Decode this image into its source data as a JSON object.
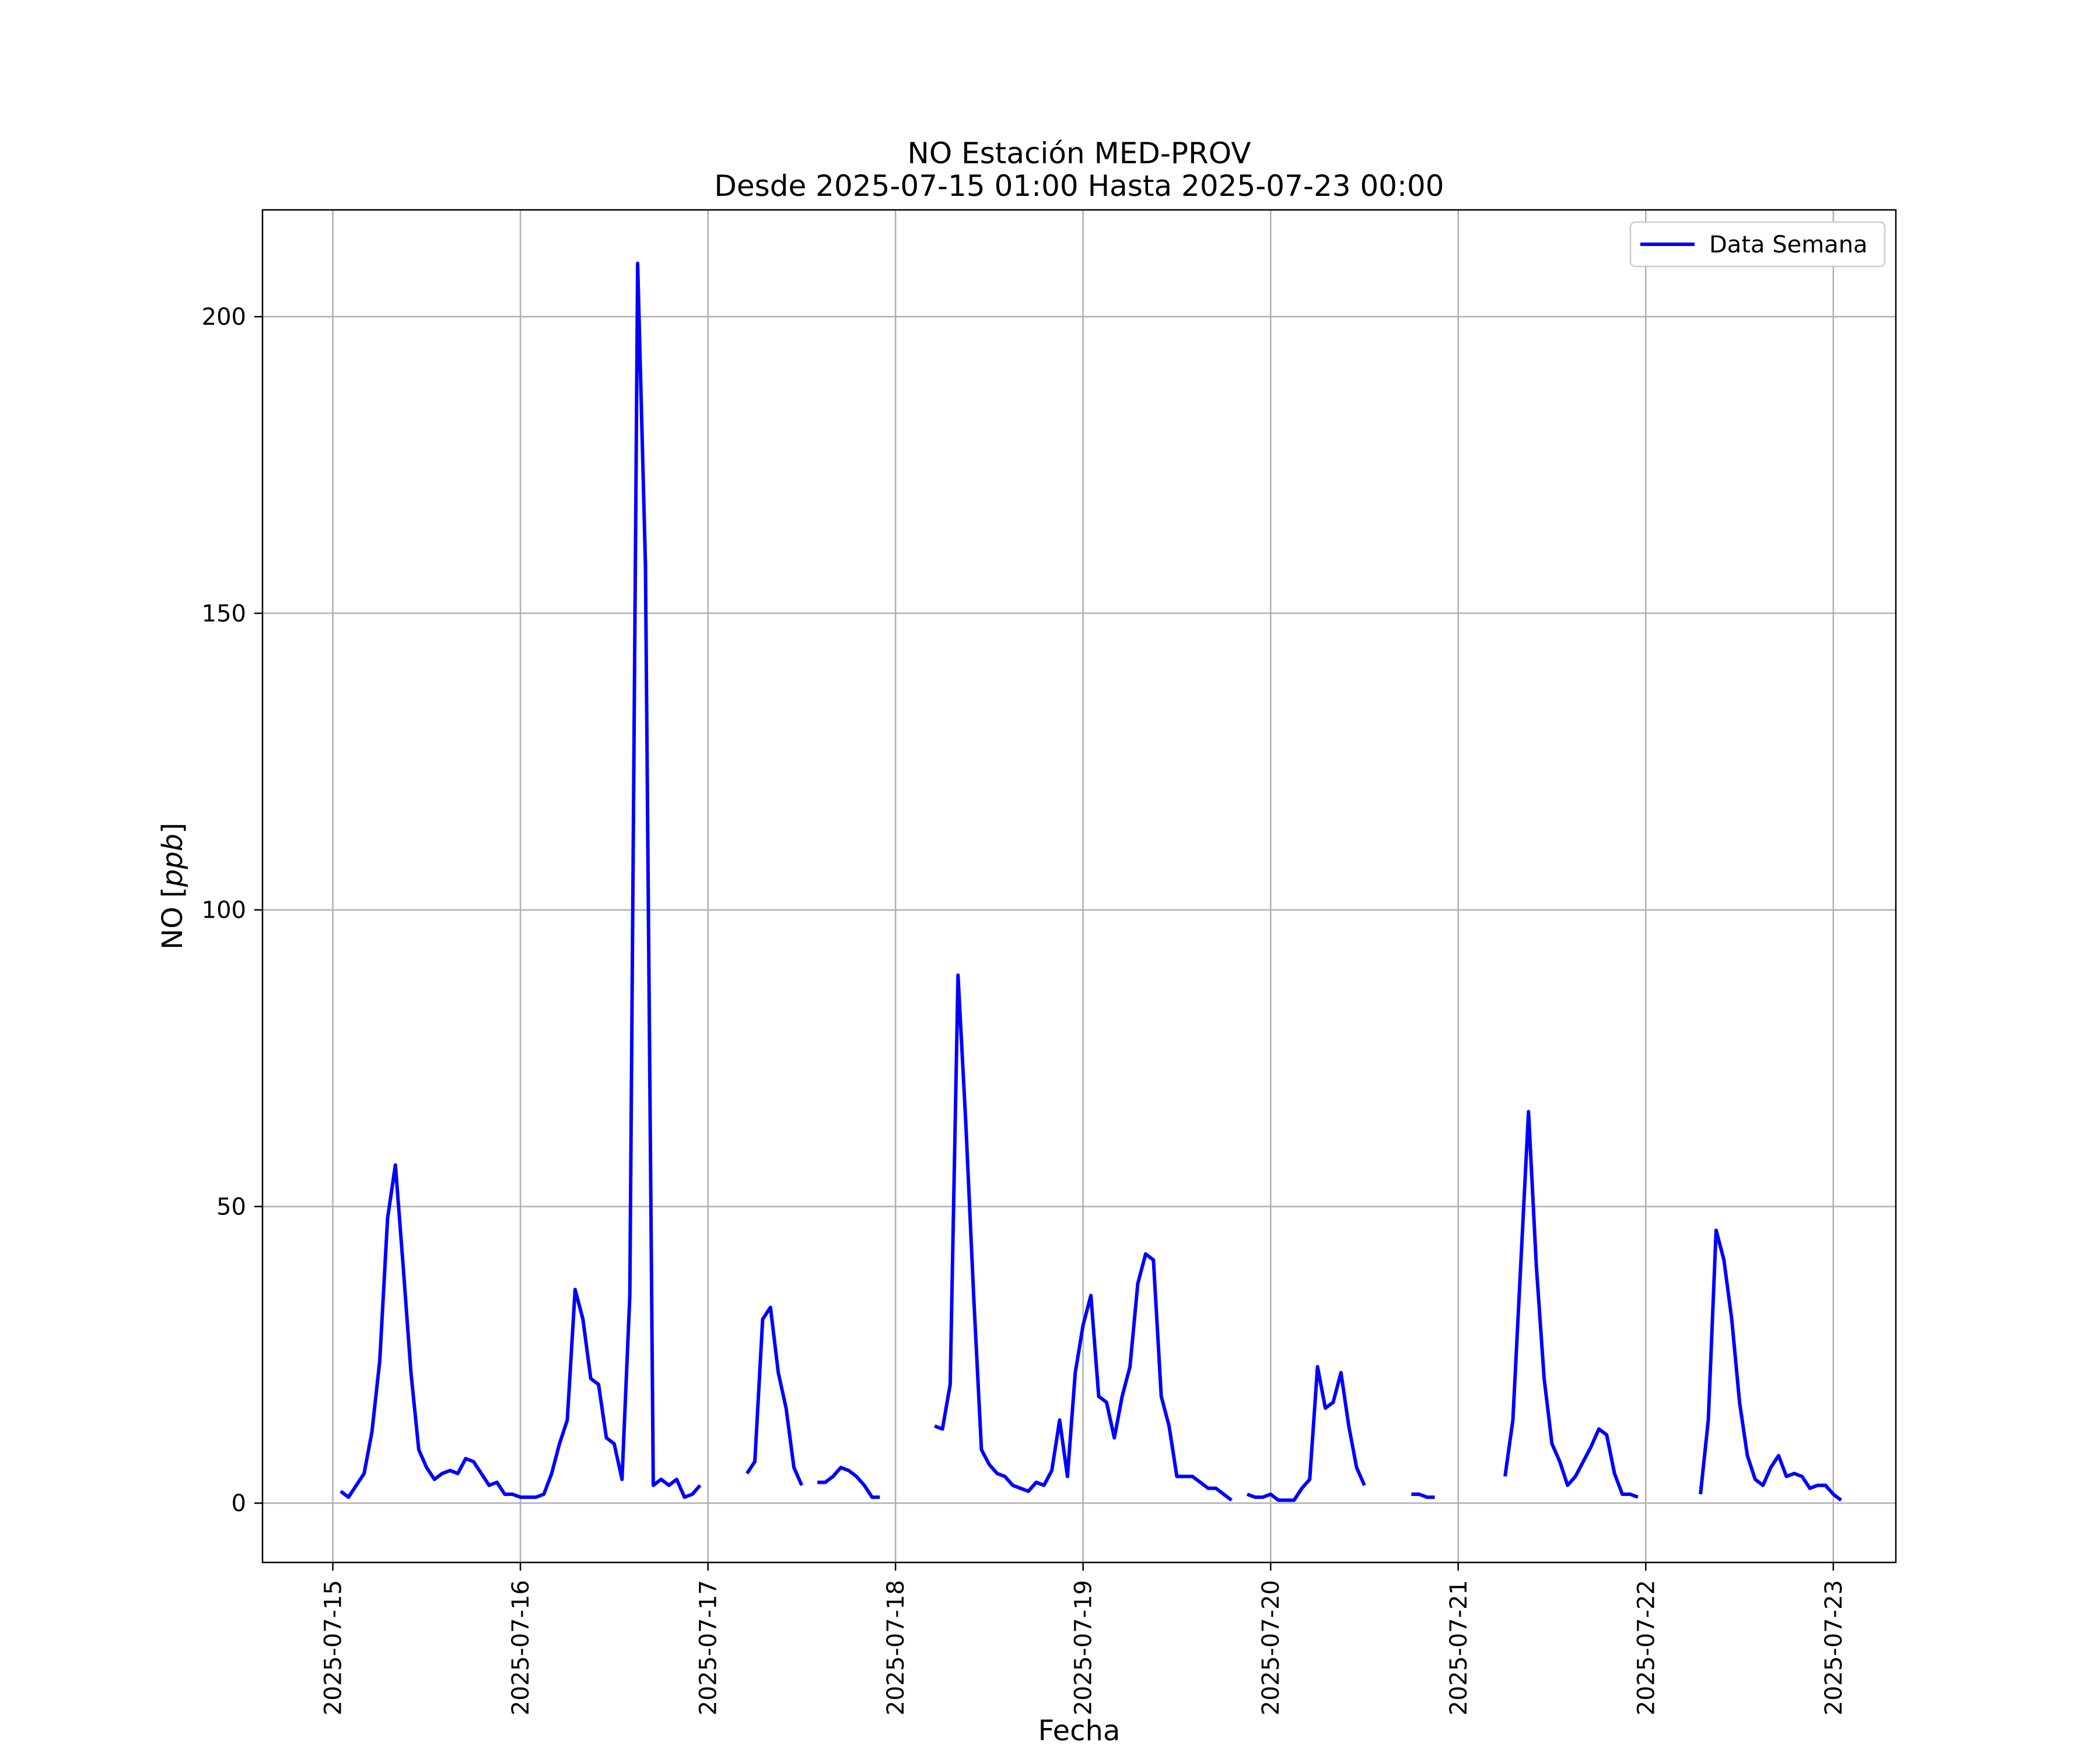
{
  "chart_data": {
    "type": "line",
    "title": "NO Estación MED-PROV",
    "subtitle": "Desde 2025-07-15 01:00 Hasta 2025-07-23 00:00",
    "xlabel": "Fecha",
    "ylabel": "NO [ppb]",
    "xlim": [
      "2025-07-14T15:00",
      "2025-07-23T08:00"
    ],
    "ylim": [
      -10,
      218
    ],
    "x_ticks": [
      "2025-07-15",
      "2025-07-16",
      "2025-07-17",
      "2025-07-18",
      "2025-07-19",
      "2025-07-20",
      "2025-07-21",
      "2025-07-22",
      "2025-07-23"
    ],
    "y_ticks": [
      0,
      50,
      100,
      150,
      200
    ],
    "grid": true,
    "legend": {
      "placement": "top-right",
      "entries": [
        "Data Semana"
      ]
    },
    "colors": {
      "series": "#0000ff"
    },
    "series": [
      {
        "name": "Data Semana",
        "x_start": "2025-07-15T01:00",
        "x_step_hours": 1,
        "values": [
          2.0,
          1.0,
          3.0,
          5.0,
          12.0,
          24.0,
          48.0,
          57.0,
          40.0,
          22.0,
          9.0,
          6.0,
          4.0,
          5.0,
          5.5,
          5.0,
          7.5,
          7.0,
          5.0,
          3.0,
          3.5,
          1.5,
          1.5,
          1.0,
          1.0,
          1.0,
          1.5,
          5.0,
          10.0,
          14.0,
          36.0,
          31.0,
          21.0,
          20.0,
          11.0,
          10.0,
          4.0,
          35.0,
          209.0,
          158.0,
          3.0,
          4.0,
          3.0,
          4.0,
          1.0,
          1.5,
          3.0,
          null,
          null,
          null,
          null,
          null,
          5.0,
          7.0,
          31.0,
          33.0,
          22.0,
          16.0,
          6.0,
          3.0,
          null,
          3.5,
          3.5,
          4.5,
          6.0,
          5.5,
          4.5,
          3.0,
          1.0,
          1.0,
          null,
          null,
          null,
          null,
          null,
          null,
          13.0,
          12.5,
          20.0,
          89.0,
          64.0,
          35.0,
          9.0,
          6.5,
          5.0,
          4.5,
          3.0,
          2.5,
          2.0,
          3.5,
          3.0,
          5.5,
          14.0,
          4.5,
          22.0,
          30.0,
          35.0,
          18.0,
          17.0,
          11.0,
          18.0,
          23.0,
          37.0,
          42.0,
          41.0,
          18.0,
          13.0,
          4.5,
          4.5,
          4.5,
          3.5,
          2.5,
          2.5,
          1.5,
          0.5,
          null,
          1.5,
          1.0,
          1.0,
          1.5,
          0.5,
          0.5,
          0.5,
          2.5,
          4.0,
          23.0,
          16.0,
          17.0,
          22.0,
          13.0,
          6.0,
          3.0,
          null,
          null,
          null,
          null,
          null,
          1.5,
          1.5,
          1.0,
          1.0,
          null,
          null,
          null,
          null,
          null,
          null,
          null,
          null,
          4.5,
          14.0,
          40.0,
          66.0,
          40.0,
          21.0,
          10.0,
          7.0,
          3.0,
          4.5,
          7.0,
          9.5,
          12.5,
          11.5,
          5.0,
          1.5,
          1.5,
          1.0,
          null,
          null,
          null,
          null,
          null,
          null,
          null,
          1.5,
          14.0,
          46.0,
          41.0,
          31.0,
          17.0,
          8.0,
          4.0,
          3.0,
          6.0,
          8.0,
          4.5,
          5.0,
          4.5,
          2.5,
          3.0,
          3.0,
          1.5,
          0.5
        ]
      }
    ]
  }
}
